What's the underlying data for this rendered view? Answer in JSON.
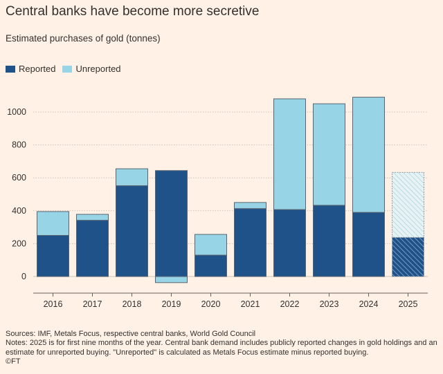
{
  "chart_data": {
    "type": "bar",
    "stacked": true,
    "title": "Central banks have become more secretive",
    "subtitle": "Estimated purchases of gold (tonnes)",
    "categories": [
      "2016",
      "2017",
      "2018",
      "2019",
      "2020",
      "2021",
      "2022",
      "2023",
      "2024",
      "2025"
    ],
    "series": [
      {
        "name": "Reported",
        "color": "#1f5289",
        "values": [
          250,
          342,
          552,
          644,
          130,
          413,
          407,
          433,
          390,
          238
        ]
      },
      {
        "name": "Unreported",
        "color": "#96d4e6",
        "values": [
          145,
          36,
          103,
          -37,
          126,
          37,
          673,
          617,
          700,
          395
        ]
      }
    ],
    "hatched_categories": [
      "2025"
    ],
    "y_ticks": [
      0,
      200,
      400,
      600,
      800,
      1000
    ],
    "ylim": [
      -100,
      1200
    ],
    "grid": true,
    "legend": "top-left"
  },
  "footer": {
    "sources": "Sources: IMF, Metals Focus, respective central banks, World Gold Council",
    "notes": "Notes: 2025 is for first nine months of the year. Central bank demand includes publicly reported changes in gold holdings and an estimate for unreported buying. \"Unreported\" is calculated as Metals Focus estimate minus reported buying.",
    "credit": "©FT"
  }
}
